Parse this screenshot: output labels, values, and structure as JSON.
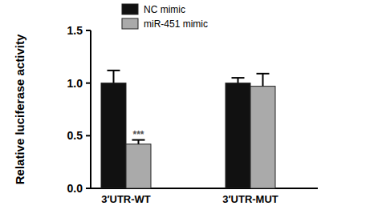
{
  "chart_data": {
    "type": "bar",
    "y_label": "Relative luciferase activity",
    "categories": [
      "3′UTR-WT",
      "3′UTR-MUT"
    ],
    "series": [
      {
        "name": "NC mimic",
        "color": "#111111",
        "values": [
          1.0,
          1.0
        ],
        "errors": [
          0.12,
          0.05
        ]
      },
      {
        "name": "miR-451 mimic",
        "color": "#aaaaaa",
        "values": [
          0.42,
          0.97
        ],
        "errors": [
          0.04,
          0.12
        ]
      }
    ],
    "ylim": [
      0,
      1.5
    ],
    "yticks": [
      {
        "value": 0,
        "label": "0.0"
      },
      {
        "value": 0.5,
        "label": "0.5"
      },
      {
        "value": 1,
        "label": "1.0"
      },
      {
        "value": 1.5,
        "label": "1.5"
      }
    ],
    "legend": "top",
    "annotations": [
      {
        "text": "***",
        "category": "3′UTR-WT",
        "series": "miR-451 mimic"
      }
    ]
  }
}
